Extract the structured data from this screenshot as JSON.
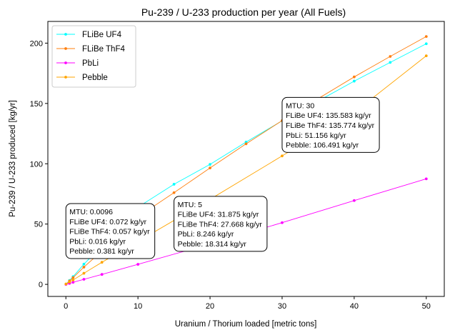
{
  "chart_data": {
    "type": "line",
    "title": "Pu-239 / U-233 production per year (All Fuels)",
    "xlabel": "Uranium / Thorium loaded [metric tons]",
    "ylabel": "Pu-239 / U-233 produced [kg/yr]",
    "xlim": [
      -2.5,
      52.5
    ],
    "ylim": [
      -10,
      218
    ],
    "xticks": [
      0,
      10,
      20,
      30,
      40,
      50
    ],
    "yticks": [
      0,
      50,
      100,
      150,
      200
    ],
    "grid": false,
    "legend_position": "top-left",
    "series": [
      {
        "name": "FLiBe UF4",
        "color": "#00ffff",
        "x": [
          0.0096,
          0.5,
          1,
          2.5,
          5,
          10,
          15,
          20,
          25,
          30,
          35,
          40,
          45,
          50
        ],
        "y": [
          0.072,
          3.2,
          6.4,
          16.8,
          31.875,
          64,
          83,
          99.5,
          118,
          135.583,
          152,
          168.5,
          184,
          199.5
        ]
      },
      {
        "name": "FLiBe ThF4",
        "color": "#ff7f0e",
        "x": [
          0.0096,
          0.5,
          1,
          2.5,
          5,
          10,
          15,
          20,
          25,
          30,
          35,
          40,
          45,
          50
        ],
        "y": [
          0.057,
          2.8,
          5.6,
          14.3,
          27.668,
          56,
          76,
          96.5,
          116.5,
          135.774,
          154,
          172,
          189,
          205.5
        ]
      },
      {
        "name": "PbLi",
        "color": "#ff00ff",
        "x": [
          0.0096,
          0.5,
          1,
          2.5,
          5,
          10,
          20,
          30,
          40,
          50
        ],
        "y": [
          0.016,
          0.8,
          1.7,
          4.2,
          8.246,
          16.6,
          33.5,
          51.156,
          69.5,
          87.5
        ]
      },
      {
        "name": "Pebble",
        "color": "#ffa500",
        "x": [
          0.0096,
          0.5,
          1,
          2.5,
          5,
          10,
          20,
          30,
          40,
          50
        ],
        "y": [
          0.381,
          2,
          3.6,
          9.2,
          18.314,
          35.5,
          70.5,
          106.491,
          142.5,
          189.5
        ]
      }
    ],
    "annotations": [
      {
        "lines": [
          "MTU: 0.0096",
          "FLiBe UF4: 0.072 kg/yr",
          "FLiBe ThF4: 0.057 kg/yr",
          "PbLi: 0.016 kg/yr",
          "Pebble: 0.381 kg/yr"
        ],
        "x": 0,
        "y": 67
      },
      {
        "lines": [
          "MTU: 5",
          "FLiBe UF4: 31.875 kg/yr",
          "FLiBe ThF4: 27.668 kg/yr",
          "PbLi: 8.246 kg/yr",
          "Pebble: 18.314 kg/yr"
        ],
        "x": 15,
        "y": 73
      },
      {
        "lines": [
          "MTU: 30",
          "FLiBe UF4: 135.583 kg/yr",
          "FLiBe ThF4: 135.774 kg/yr",
          "PbLi: 51.156 kg/yr",
          "Pebble: 106.491 kg/yr"
        ],
        "x": 30,
        "y": 155
      }
    ]
  }
}
